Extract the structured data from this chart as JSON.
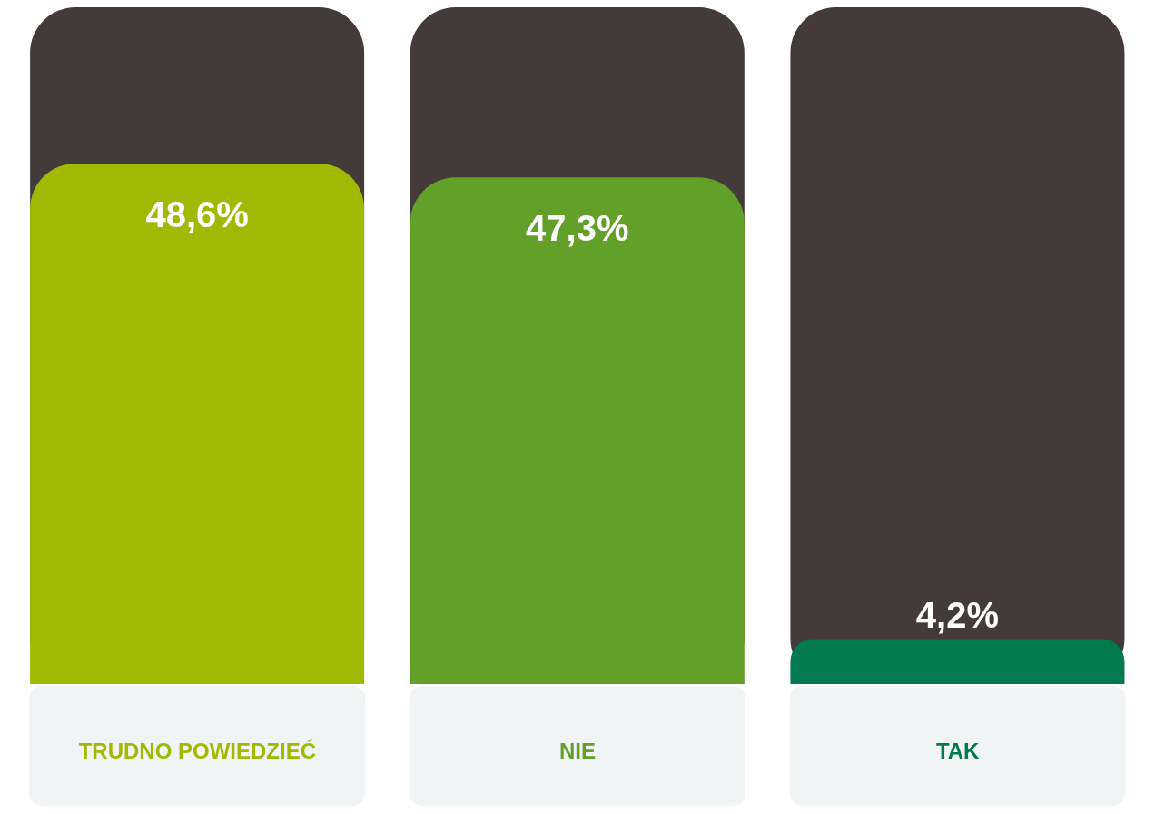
{
  "chart_data": {
    "type": "bar",
    "categories": [
      "TRUDNO POWIEDZIEĆ",
      "NIE",
      "TAK"
    ],
    "values": [
      48.6,
      47.3,
      4.2
    ],
    "colors": [
      "#a2b904",
      "#62a02a",
      "#007a4e"
    ],
    "value_labels": [
      "48,6%",
      "47,3%",
      "4,2%"
    ],
    "grid": false,
    "legend": false
  }
}
